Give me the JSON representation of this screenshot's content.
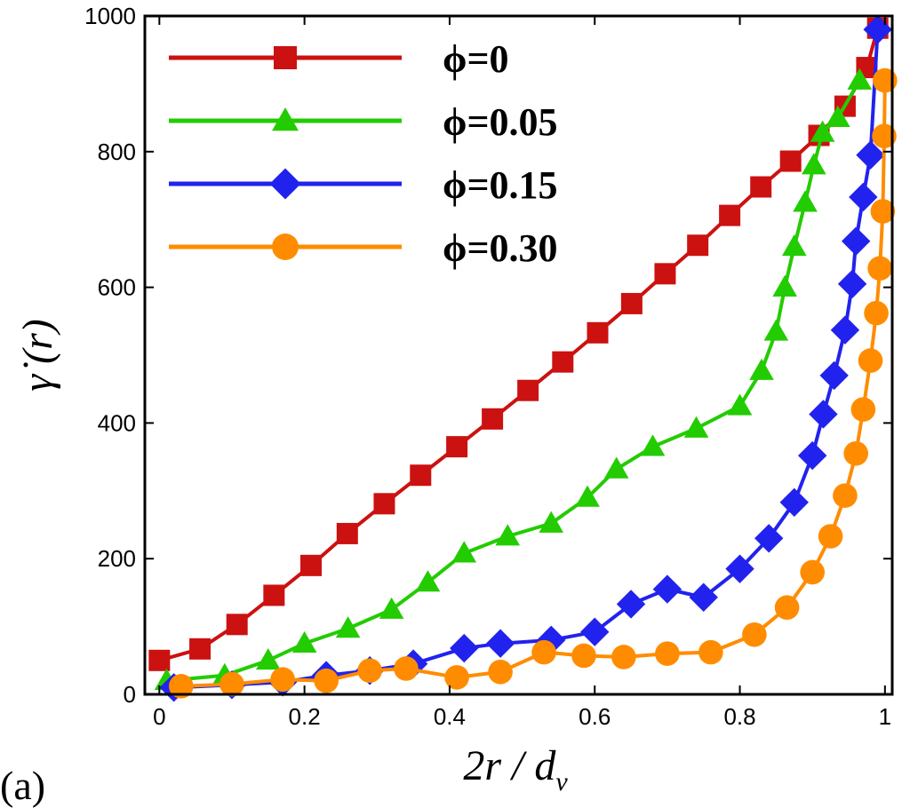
{
  "chart_data": {
    "type": "line",
    "title": "",
    "panel_label": "(a)",
    "xlabel": "2r / d",
    "xlabel_sub": "v",
    "ylabel": "γ̇ (r)",
    "xlim": [
      -0.02,
      1.01
    ],
    "ylim": [
      0,
      1000
    ],
    "xticks": [
      0,
      0.2,
      0.4,
      0.6,
      0.8,
      1
    ],
    "xtick_labels": [
      "0",
      "0.2",
      "0.4",
      "0.6",
      "0.8",
      "1"
    ],
    "yticks": [
      0,
      200,
      400,
      600,
      800,
      1000
    ],
    "ytick_labels": [
      "0",
      "200",
      "400",
      "600",
      "800",
      "1000"
    ],
    "legend_position": "top-left",
    "series": [
      {
        "name": "ϕ=0",
        "color": "#cc1111",
        "marker": "square",
        "x": [
          0.0,
          0.056,
          0.107,
          0.158,
          0.209,
          0.259,
          0.31,
          0.36,
          0.41,
          0.459,
          0.508,
          0.556,
          0.604,
          0.651,
          0.697,
          0.742,
          0.786,
          0.829,
          0.87,
          0.909,
          0.945,
          0.975,
          0.99
        ],
        "y": [
          50,
          67,
          103,
          146,
          190,
          237,
          281,
          323,
          365,
          406,
          448,
          490,
          533,
          576,
          620,
          662,
          706,
          748,
          786,
          824,
          867,
          924,
          982
        ]
      },
      {
        "name": "ϕ=0.05",
        "color": "#22cc00",
        "marker": "triangle",
        "x": [
          0.01,
          0.09,
          0.15,
          0.2,
          0.26,
          0.32,
          0.37,
          0.42,
          0.48,
          0.54,
          0.59,
          0.63,
          0.68,
          0.74,
          0.8,
          0.83,
          0.85,
          0.862,
          0.875,
          0.89,
          0.902,
          0.914,
          0.935,
          0.965
        ],
        "y": [
          20,
          28,
          50,
          75,
          97,
          125,
          165,
          208,
          233,
          252,
          290,
          332,
          365,
          392,
          425,
          477,
          535,
          600,
          660,
          725,
          780,
          828,
          850,
          905
        ]
      },
      {
        "name": "ϕ=0.15",
        "color": "#2222ee",
        "marker": "diamond",
        "x": [
          0.02,
          0.1,
          0.17,
          0.23,
          0.29,
          0.35,
          0.42,
          0.47,
          0.54,
          0.6,
          0.65,
          0.7,
          0.75,
          0.8,
          0.84,
          0.875,
          0.9,
          0.915,
          0.93,
          0.945,
          0.955,
          0.96,
          0.97,
          0.98,
          0.99
        ],
        "y": [
          10,
          14,
          18,
          28,
          35,
          45,
          68,
          75,
          80,
          92,
          133,
          155,
          143,
          185,
          230,
          283,
          352,
          413,
          470,
          537,
          605,
          668,
          733,
          795,
          980
        ]
      },
      {
        "name": "ϕ=0.30",
        "color": "#ff8c00",
        "marker": "circle",
        "x": [
          0.03,
          0.1,
          0.17,
          0.23,
          0.29,
          0.34,
          0.41,
          0.47,
          0.53,
          0.585,
          0.64,
          0.7,
          0.76,
          0.82,
          0.865,
          0.9,
          0.925,
          0.945,
          0.96,
          0.97,
          0.98,
          0.988,
          0.993,
          0.997,
          0.999,
          1.0
        ],
        "y": [
          12,
          15,
          22,
          20,
          35,
          38,
          25,
          33,
          62,
          57,
          55,
          60,
          62,
          88,
          128,
          180,
          233,
          293,
          355,
          420,
          492,
          562,
          628,
          712,
          823,
          905
        ]
      }
    ]
  }
}
